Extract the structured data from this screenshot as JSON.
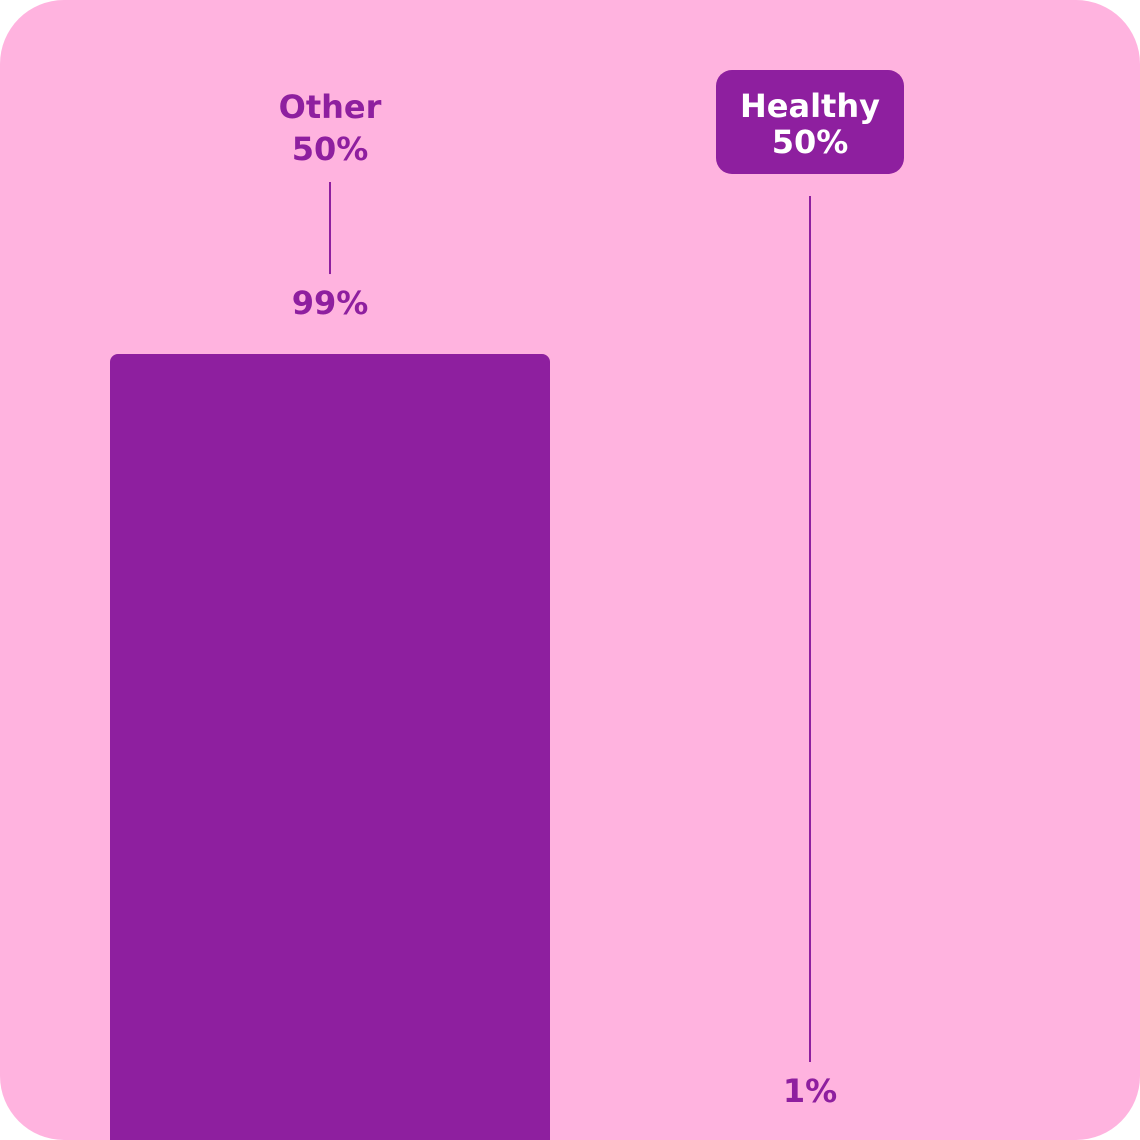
{
  "theme": {
    "background": "#FFB3DF",
    "bar": "#8E1F9F",
    "highlight_text": "#FFFFFF",
    "text": "#8E1F9F"
  },
  "chart_data": {
    "type": "bar",
    "categories": [
      "Other",
      "Healthy"
    ],
    "category_shares": [
      "50%",
      "50%"
    ],
    "values": [
      99,
      1
    ],
    "value_labels": [
      "99%",
      "1%"
    ],
    "highlighted_category": "Healthy",
    "ylim": [
      0,
      100
    ],
    "grid": false,
    "legend": "none"
  }
}
